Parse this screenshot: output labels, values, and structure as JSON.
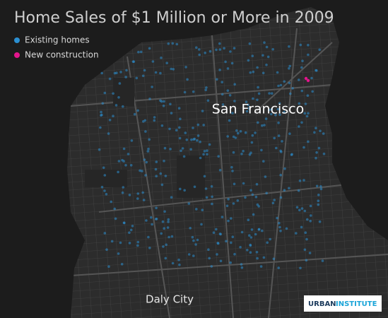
{
  "title": "Home Sales of $1 Million or More in 2009",
  "legend": [
    {
      "label": "Existing homes",
      "color": "#2b8fd1"
    },
    {
      "label": "New construction",
      "color": "#e2158c"
    }
  ],
  "places": [
    "San Francisco",
    "Daly City"
  ],
  "logo": {
    "first": "URBAN",
    "second": "INSTITUTE"
  }
}
